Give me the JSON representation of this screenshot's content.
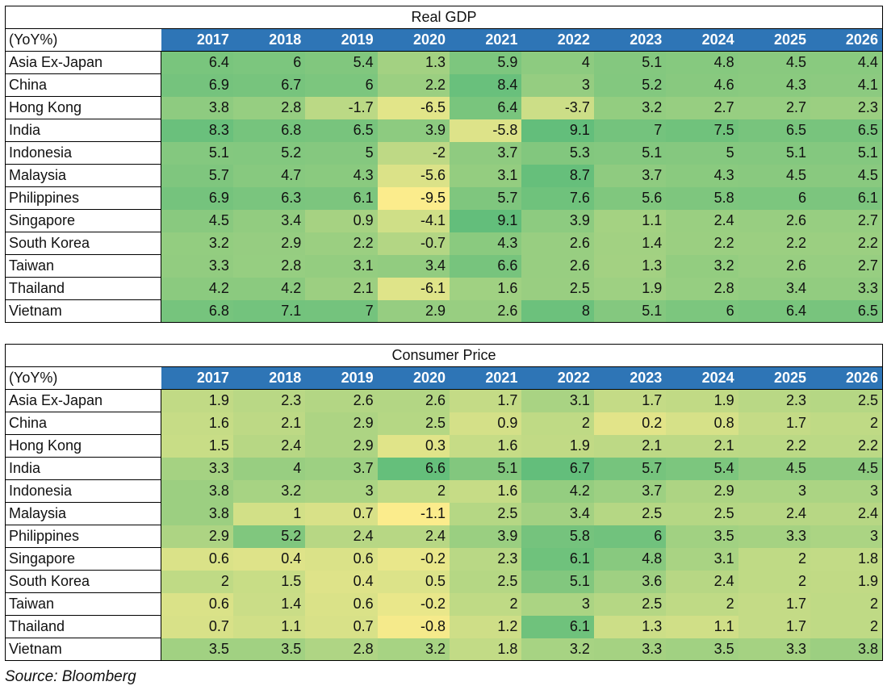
{
  "chart_data": [
    {
      "type": "table",
      "title": "Real GDP",
      "corner_label": "(YoY%)",
      "columns": [
        "2017",
        "2018",
        "2019",
        "2020",
        "2021",
        "2022",
        "2023",
        "2024",
        "2025",
        "2026"
      ],
      "rows": [
        {
          "label": "Asia Ex-Japan",
          "values": [
            6.4,
            6,
            5.4,
            1.3,
            5.9,
            4,
            5.1,
            4.8,
            4.5,
            4.4
          ]
        },
        {
          "label": "China",
          "values": [
            6.9,
            6.7,
            6,
            2.2,
            8.4,
            3,
            5.2,
            4.6,
            4.3,
            4.1
          ]
        },
        {
          "label": "Hong Kong",
          "values": [
            3.8,
            2.8,
            -1.7,
            -6.5,
            6.4,
            -3.7,
            3.2,
            2.7,
            2.7,
            2.3
          ]
        },
        {
          "label": "India",
          "values": [
            8.3,
            6.8,
            6.5,
            3.9,
            -5.8,
            9.1,
            7,
            7.5,
            6.5,
            6.5
          ]
        },
        {
          "label": "Indonesia",
          "values": [
            5.1,
            5.2,
            5,
            -2,
            3.7,
            5.3,
            5.1,
            5,
            5.1,
            5.1
          ]
        },
        {
          "label": "Malaysia",
          "values": [
            5.7,
            4.7,
            4.3,
            -5.6,
            3.1,
            8.7,
            3.7,
            4.3,
            4.5,
            4.5
          ]
        },
        {
          "label": "Philippines",
          "values": [
            6.9,
            6.3,
            6.1,
            -9.5,
            5.7,
            7.6,
            5.6,
            5.8,
            6,
            6.1
          ]
        },
        {
          "label": "Singapore",
          "values": [
            4.5,
            3.4,
            0.9,
            -4.1,
            9.1,
            3.9,
            1.1,
            2.4,
            2.6,
            2.7
          ]
        },
        {
          "label": "South Korea",
          "values": [
            3.2,
            2.9,
            2.2,
            -0.7,
            4.3,
            2.6,
            1.4,
            2.2,
            2.2,
            2.2
          ]
        },
        {
          "label": "Taiwan",
          "values": [
            3.3,
            2.8,
            3.1,
            3.4,
            6.6,
            2.6,
            1.3,
            3.2,
            2.6,
            2.7
          ]
        },
        {
          "label": "Thailand",
          "values": [
            4.2,
            4.2,
            2.1,
            -6.1,
            1.6,
            2.5,
            1.9,
            2.8,
            3.4,
            3.3
          ]
        },
        {
          "label": "Vietnam",
          "values": [
            6.8,
            7.1,
            7,
            2.9,
            2.6,
            8,
            5.1,
            6,
            6.4,
            6.5
          ]
        }
      ]
    },
    {
      "type": "table",
      "title": "Consumer Price",
      "corner_label": "(YoY%)",
      "columns": [
        "2017",
        "2018",
        "2019",
        "2020",
        "2021",
        "2022",
        "2023",
        "2024",
        "2025",
        "2026"
      ],
      "rows": [
        {
          "label": "Asia Ex-Japan",
          "values": [
            1.9,
            2.3,
            2.6,
            2.6,
            1.7,
            3.1,
            1.7,
            1.9,
            2.3,
            2.5
          ]
        },
        {
          "label": "China",
          "values": [
            1.6,
            2.1,
            2.9,
            2.5,
            0.9,
            2,
            0.2,
            0.8,
            1.7,
            2
          ]
        },
        {
          "label": "Hong Kong",
          "values": [
            1.5,
            2.4,
            2.9,
            0.3,
            1.6,
            1.9,
            2.1,
            2.1,
            2.2,
            2.2
          ]
        },
        {
          "label": "India",
          "values": [
            3.3,
            4,
            3.7,
            6.6,
            5.1,
            6.7,
            5.7,
            5.4,
            4.5,
            4.5
          ]
        },
        {
          "label": "Indonesia",
          "values": [
            3.8,
            3.2,
            3,
            2,
            1.6,
            4.2,
            3.7,
            2.9,
            3,
            3
          ]
        },
        {
          "label": "Malaysia",
          "values": [
            3.8,
            1,
            0.7,
            -1.1,
            2.5,
            3.4,
            2.5,
            2.5,
            2.4,
            2.4
          ]
        },
        {
          "label": "Philippines",
          "values": [
            2.9,
            5.2,
            2.4,
            2.4,
            3.9,
            5.8,
            6,
            3.5,
            3.3,
            3
          ]
        },
        {
          "label": "Singapore",
          "values": [
            0.6,
            0.4,
            0.6,
            -0.2,
            2.3,
            6.1,
            4.8,
            3.1,
            2,
            1.8
          ]
        },
        {
          "label": "South Korea",
          "values": [
            2,
            1.5,
            0.4,
            0.5,
            2.5,
            5.1,
            3.6,
            2.4,
            2,
            1.9
          ]
        },
        {
          "label": "Taiwan",
          "values": [
            0.6,
            1.4,
            0.6,
            -0.2,
            2,
            3,
            2.5,
            2,
            1.7,
            2
          ]
        },
        {
          "label": "Thailand",
          "values": [
            0.7,
            1.1,
            0.7,
            -0.8,
            1.2,
            6.1,
            1.3,
            1.1,
            1.7,
            2
          ]
        },
        {
          "label": "Vietnam",
          "values": [
            3.5,
            3.5,
            2.8,
            3.2,
            1.8,
            3.2,
            3.3,
            3.5,
            3.3,
            3.8
          ]
        }
      ]
    }
  ],
  "colors": {
    "header_bg": "#2e75b6",
    "scale_low": "#fbec8c",
    "scale_high": "#63be7b"
  },
  "footer": {
    "source": "Source: Bloomberg"
  }
}
